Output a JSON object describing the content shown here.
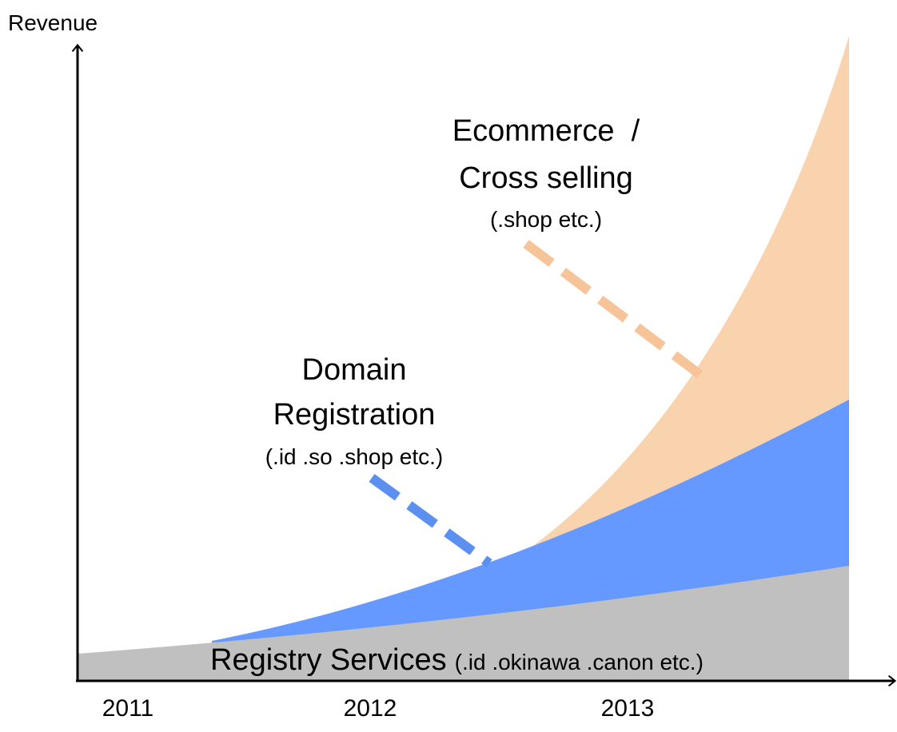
{
  "axis": {
    "y_label": "Revenue",
    "x_labels": [
      "2011",
      "2012",
      "2013"
    ]
  },
  "layers": {
    "ecommerce": {
      "title_lines": [
        "Ecommerce  /",
        "Cross selling"
      ],
      "examples": "(.shop etc.)"
    },
    "domain": {
      "title_lines": [
        "Domain",
        "Registration"
      ],
      "examples": "(.id .so .shop etc.)"
    },
    "registry": {
      "title": "Registry Services",
      "examples": "(.id .okinawa .canon etc.)"
    }
  }
}
